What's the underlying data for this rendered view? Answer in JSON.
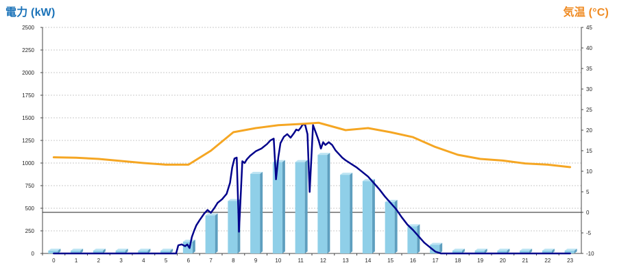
{
  "chart_data": {
    "type": "bar",
    "left_axis_title": "電力 (kW)",
    "right_axis_title": "気温 (°C)",
    "left_ylim": [
      0,
      2500
    ],
    "right_ylim": [
      -10,
      45
    ],
    "left_ticks": [
      "0",
      "250",
      "500",
      "750",
      "1000",
      "1250",
      "1500",
      "1750",
      "2000",
      "2250",
      "2500"
    ],
    "right_ticks": [
      "-10",
      "-5",
      "0",
      "5",
      "10",
      "15",
      "20",
      "25",
      "30",
      "35",
      "40",
      "45"
    ],
    "categories": [
      "0",
      "1",
      "2",
      "3",
      "4",
      "5",
      "6",
      "7",
      "8",
      "9",
      "10",
      "11",
      "12",
      "13",
      "14",
      "15",
      "16",
      "17",
      "18",
      "19",
      "20",
      "21",
      "22",
      "23"
    ],
    "grid": true,
    "colors": {
      "bar_face": "#8fcfe8",
      "bar_side": "#5e9fbf",
      "bar_top": "#bde4f3",
      "power_line": "#00008b",
      "temp_line": "#f5a623",
      "grid": "#c8c8c8",
      "left_title": "#1a72b8",
      "right_title": "#ef8a22"
    },
    "series": [
      {
        "kind": "bar",
        "axis": "left",
        "values": [
          0,
          0,
          0,
          0,
          0,
          0,
          130,
          420,
          580,
          880,
          1010,
          1010,
          1090,
          870,
          800,
          570,
          300,
          95,
          0,
          0,
          0,
          0,
          0,
          0
        ]
      },
      {
        "kind": "line",
        "axis": "left",
        "x": [
          0,
          1,
          2,
          3,
          4,
          5,
          5.45,
          5.55,
          5.7,
          5.85,
          5.95,
          6.05,
          6.15,
          6.25,
          6.35,
          6.5,
          6.7,
          6.85,
          7,
          7.15,
          7.3,
          7.5,
          7.7,
          7.85,
          7.95,
          8.05,
          8.15,
          8.25,
          8.4,
          8.5,
          8.6,
          8.75,
          9,
          9.25,
          9.5,
          9.65,
          9.8,
          9.9,
          10,
          10.1,
          10.25,
          10.4,
          10.55,
          10.7,
          10.8,
          10.9,
          11,
          11.1,
          11.2,
          11.3,
          11.4,
          11.55,
          11.7,
          11.8,
          11.9,
          12,
          12.1,
          12.25,
          12.4,
          12.55,
          12.7,
          12.85,
          13,
          13.25,
          13.5,
          13.75,
          14,
          14.25,
          14.5,
          14.75,
          15,
          15.25,
          15.5,
          15.75,
          16,
          16.25,
          16.5,
          16.75,
          17,
          17.25,
          17.5,
          18,
          19,
          20,
          21,
          22,
          23
        ],
        "values": [
          0,
          0,
          0,
          0,
          0,
          0,
          0,
          90,
          100,
          80,
          100,
          60,
          180,
          250,
          310,
          370,
          440,
          480,
          450,
          500,
          560,
          600,
          660,
          780,
          950,
          1050,
          1060,
          240,
          1020,
          1000,
          1040,
          1080,
          1130,
          1160,
          1210,
          1250,
          1270,
          820,
          1060,
          1220,
          1290,
          1320,
          1280,
          1330,
          1370,
          1360,
          1390,
          1430,
          1420,
          1320,
          680,
          1420,
          1320,
          1250,
          1160,
          1230,
          1200,
          1230,
          1200,
          1140,
          1100,
          1060,
          1030,
          990,
          950,
          900,
          850,
          780,
          710,
          630,
          560,
          490,
          400,
          320,
          260,
          190,
          120,
          70,
          20,
          0,
          0,
          0,
          0,
          0,
          0,
          0,
          0
        ]
      },
      {
        "kind": "line",
        "axis": "right",
        "x": [
          0,
          1,
          2,
          3,
          4,
          5,
          6,
          7,
          8,
          9,
          10,
          11,
          11.8,
          12,
          13,
          14,
          15,
          16,
          17,
          18,
          19,
          20,
          21,
          22,
          23
        ],
        "values": [
          13.4,
          13.3,
          13.0,
          12.5,
          12.0,
          11.6,
          11.6,
          15.0,
          19.5,
          20.5,
          21.2,
          21.5,
          21.8,
          21.5,
          20.0,
          20.5,
          19.5,
          18.3,
          15.9,
          14.0,
          13.0,
          12.6,
          11.9,
          11.6,
          11.0
        ]
      }
    ]
  }
}
